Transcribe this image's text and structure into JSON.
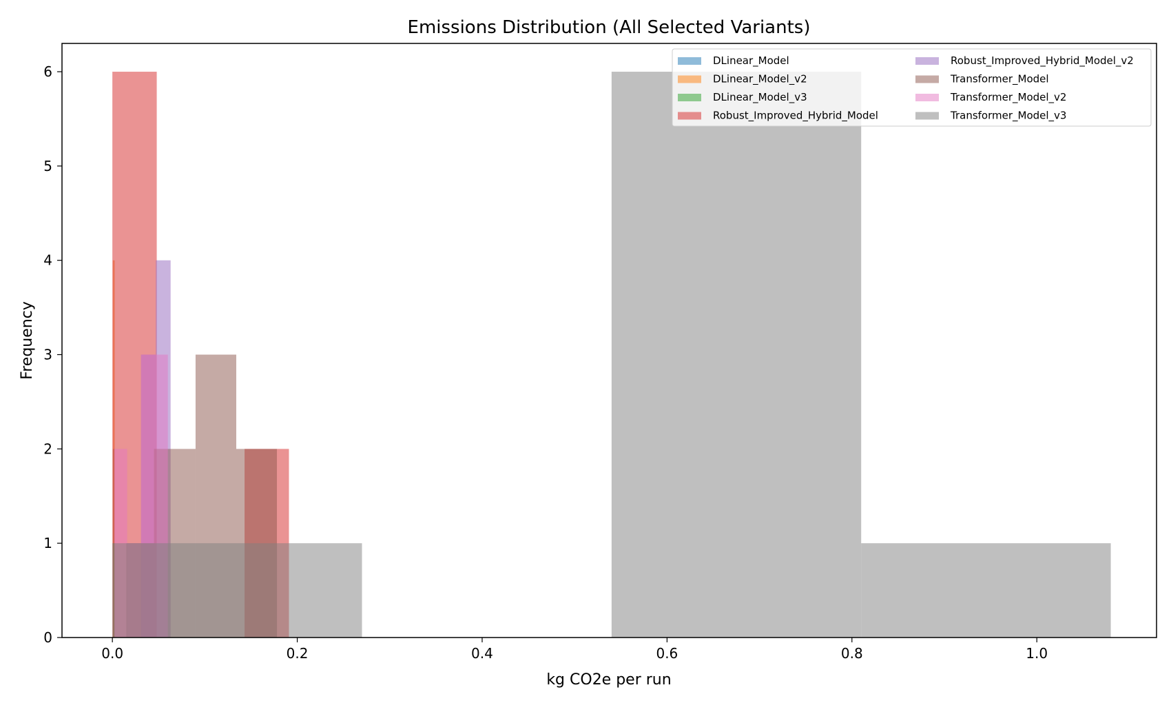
{
  "chart_data": {
    "type": "bar",
    "subtype": "overlaid-histogram",
    "title": "Emissions Distribution (All Selected Variants)",
    "xlabel": "kg CO2e per run",
    "ylabel": "Frequency",
    "xlim": [
      -0.0545,
      1.1295
    ],
    "ylim": [
      0,
      6.3
    ],
    "xticks": [
      0.0,
      0.2,
      0.4,
      0.6,
      0.8,
      1.0
    ],
    "xtick_labels": [
      "0.0",
      "0.2",
      "0.4",
      "0.6",
      "0.8",
      "1.0"
    ],
    "yticks": [
      0,
      1,
      2,
      3,
      4,
      5,
      6
    ],
    "ytick_labels": [
      "0",
      "1",
      "2",
      "3",
      "4",
      "5",
      "6"
    ],
    "bar_opacity": 0.5,
    "grid": false,
    "legend_position": "top-right",
    "legend_columns": 2,
    "series": [
      {
        "name": "DLinear_Model",
        "color": "#1f77b4",
        "bins": [
          {
            "x0": 0.0005,
            "x1": 0.0025,
            "count": 2
          }
        ]
      },
      {
        "name": "DLinear_Model_v2",
        "color": "#ff7f0e",
        "bins": [
          {
            "x0": 0.0005,
            "x1": 0.0025,
            "count": 4
          }
        ]
      },
      {
        "name": "DLinear_Model_v3",
        "color": "#2ca02c",
        "bins": [
          {
            "x0": 0.0005,
            "x1": 0.0025,
            "count": 1
          }
        ]
      },
      {
        "name": "Robust_Improved_Hybrid_Model",
        "color": "#d62728",
        "bins": [
          {
            "x0": 0.0,
            "x1": 0.048,
            "count": 6
          },
          {
            "x0": 0.143,
            "x1": 0.191,
            "count": 2
          }
        ]
      },
      {
        "name": "Robust_Improved_Hybrid_Model_v2",
        "color": "#9467bd",
        "bins": [
          {
            "x0": 0.031,
            "x1": 0.047,
            "count": 3
          },
          {
            "x0": 0.047,
            "x1": 0.063,
            "count": 4
          }
        ]
      },
      {
        "name": "Transformer_Model",
        "color": "#8c564b",
        "bins": [
          {
            "x0": 0.015,
            "x1": 0.045,
            "count": 1
          },
          {
            "x0": 0.045,
            "x1": 0.09,
            "count": 2
          },
          {
            "x0": 0.09,
            "x1": 0.134,
            "count": 3
          },
          {
            "x0": 0.134,
            "x1": 0.178,
            "count": 2
          }
        ]
      },
      {
        "name": "Transformer_Model_v2",
        "color": "#e377c2",
        "bins": [
          {
            "x0": 0.002,
            "x1": 0.016,
            "count": 2
          },
          {
            "x0": 0.016,
            "x1": 0.031,
            "count": 1
          },
          {
            "x0": 0.031,
            "x1": 0.06,
            "count": 3
          }
        ]
      },
      {
        "name": "Transformer_Model_v3",
        "color": "#7f7f7f",
        "bins": [
          {
            "x0": 0.0,
            "x1": 0.27,
            "count": 1
          },
          {
            "x0": 0.54,
            "x1": 0.81,
            "count": 6
          },
          {
            "x0": 0.81,
            "x1": 1.08,
            "count": 1
          }
        ]
      }
    ]
  }
}
